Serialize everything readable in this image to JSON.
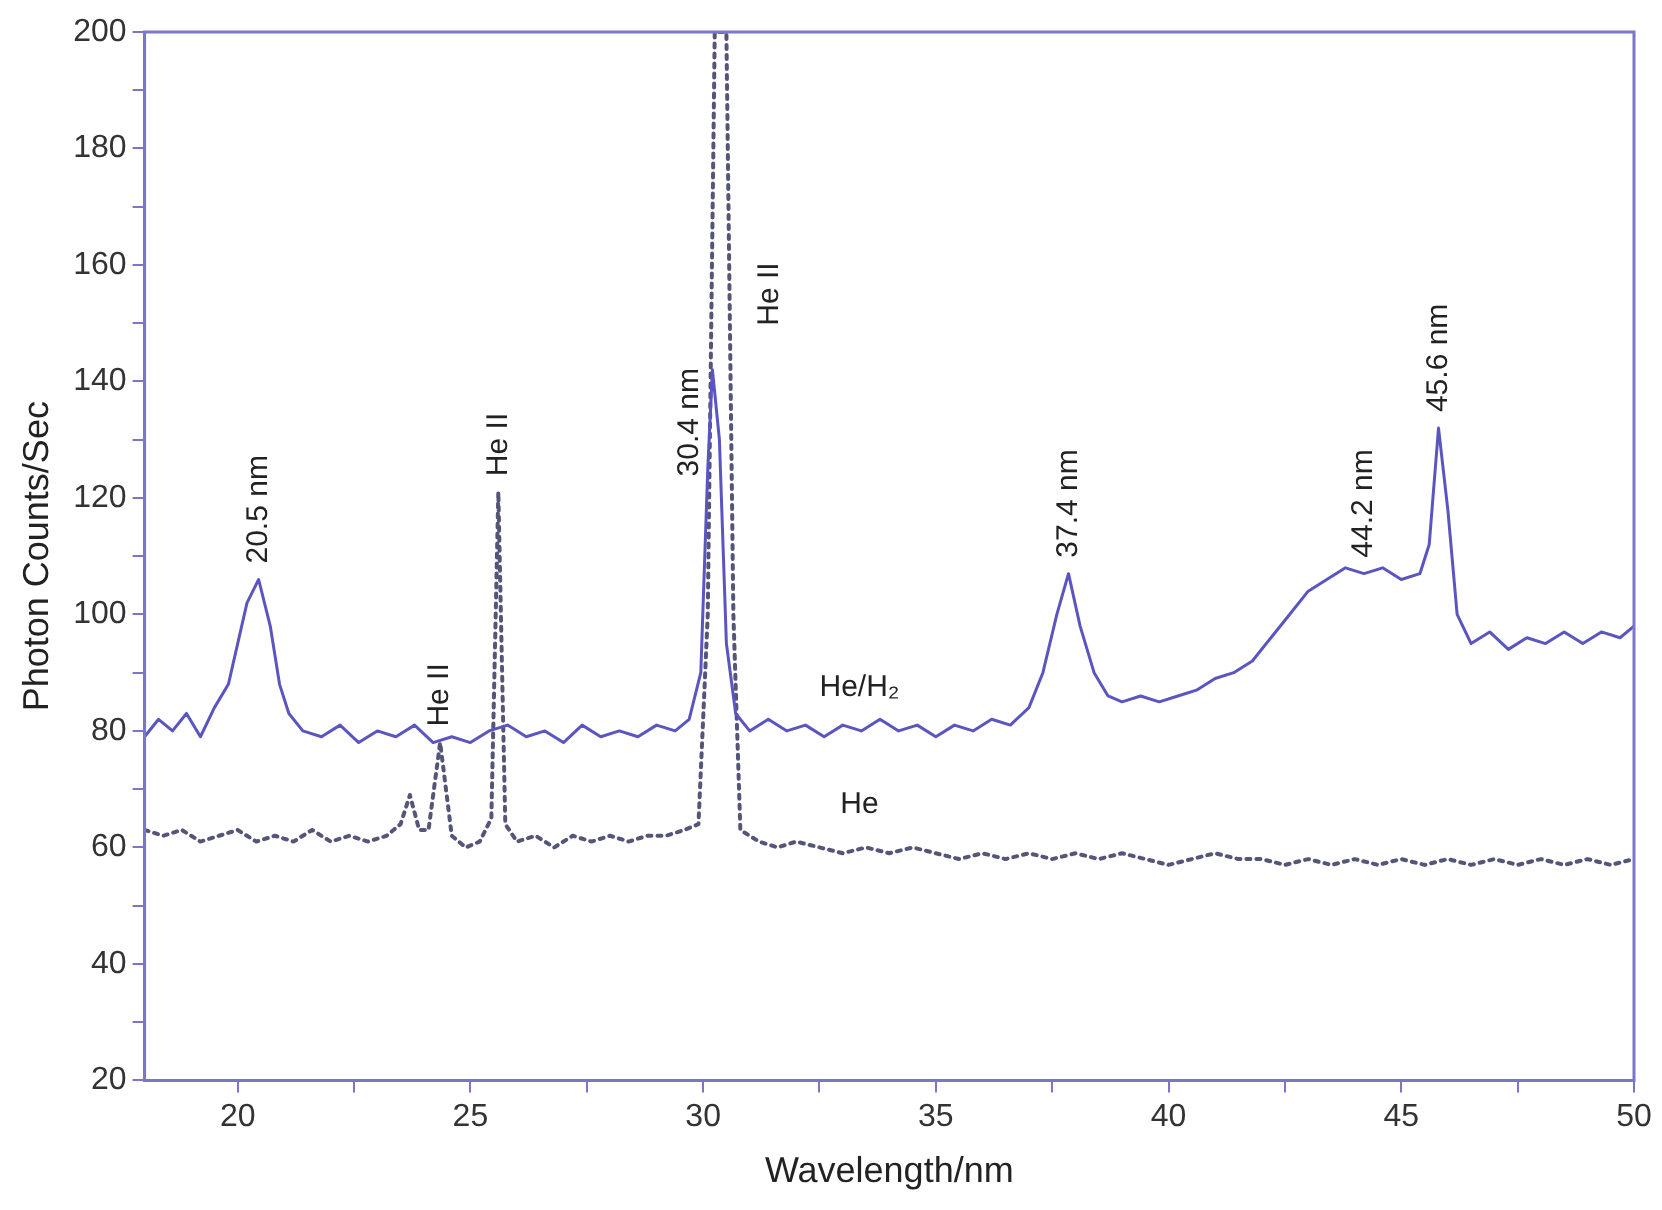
{
  "chart_data": {
    "type": "line",
    "xlabel": "Wavelength/nm",
    "ylabel": "Photon Counts/Sec",
    "xlim": [
      18,
      50
    ],
    "ylim": [
      20,
      200
    ],
    "xticks": [
      20,
      {
        "value": 22.5,
        "label": null
      },
      25,
      {
        "value": 27.5,
        "label": null
      },
      30,
      {
        "value": 32.5,
        "label": null
      },
      35,
      {
        "value": 37.5,
        "label": null
      },
      40,
      {
        "value": 42.5,
        "label": null
      },
      45,
      {
        "value": 47.5,
        "label": null
      },
      50
    ],
    "yticks": [
      20,
      {
        "value": 30,
        "label": null
      },
      40,
      {
        "value": 50,
        "label": null
      },
      60,
      {
        "value": 70,
        "label": null
      },
      80,
      {
        "value": 90,
        "label": null
      },
      100,
      {
        "value": 110,
        "label": null
      },
      120,
      {
        "value": 130,
        "label": null
      },
      140,
      {
        "value": 150,
        "label": null
      },
      160,
      {
        "value": 170,
        "label": null
      },
      180,
      {
        "value": 190,
        "label": null
      },
      200
    ],
    "grid": false,
    "legend": false,
    "marker": "none",
    "series": [
      {
        "name": "He/H₂",
        "color": "#5b55c0",
        "line_style": "solid",
        "x": [
          18.0,
          18.3,
          18.6,
          18.9,
          19.2,
          19.5,
          19.8,
          20.0,
          20.2,
          20.45,
          20.7,
          20.9,
          21.1,
          21.4,
          21.8,
          22.2,
          22.6,
          23.0,
          23.4,
          23.8,
          24.2,
          24.6,
          25.0,
          25.4,
          25.8,
          26.2,
          26.6,
          27.0,
          27.4,
          27.8,
          28.2,
          28.6,
          29.0,
          29.4,
          29.7,
          29.95,
          30.1,
          30.2,
          30.35,
          30.5,
          30.7,
          31.0,
          31.4,
          31.8,
          32.2,
          32.6,
          33.0,
          33.4,
          33.8,
          34.2,
          34.6,
          35.0,
          35.4,
          35.8,
          36.2,
          36.6,
          37.0,
          37.3,
          37.6,
          37.85,
          38.1,
          38.4,
          38.7,
          39.0,
          39.4,
          39.8,
          40.2,
          40.6,
          41.0,
          41.4,
          41.8,
          42.2,
          42.6,
          43.0,
          43.4,
          43.8,
          44.2,
          44.6,
          45.0,
          45.4,
          45.6,
          45.8,
          46.0,
          46.2,
          46.5,
          46.9,
          47.3,
          47.7,
          48.1,
          48.5,
          48.9,
          49.3,
          49.7,
          50.0
        ],
        "values": [
          79,
          82,
          80,
          83,
          79,
          84,
          88,
          95,
          102,
          106,
          98,
          88,
          83,
          80,
          79,
          81,
          78,
          80,
          79,
          81,
          78,
          79,
          78,
          80,
          81,
          79,
          80,
          78,
          81,
          79,
          80,
          79,
          81,
          80,
          82,
          90,
          125,
          142,
          130,
          95,
          83,
          80,
          82,
          80,
          81,
          79,
          81,
          80,
          82,
          80,
          81,
          79,
          81,
          80,
          82,
          81,
          84,
          90,
          100,
          107,
          98,
          90,
          86,
          85,
          86,
          85,
          86,
          87,
          89,
          90,
          92,
          96,
          100,
          104,
          106,
          108,
          107,
          108,
          106,
          107,
          112,
          132,
          118,
          100,
          95,
          97,
          94,
          96,
          95,
          97,
          95,
          97,
          96,
          98
        ]
      },
      {
        "name": "He",
        "color": "#55557a",
        "line_style": "dotted",
        "x": [
          18.0,
          18.4,
          18.8,
          19.2,
          19.6,
          20.0,
          20.4,
          20.8,
          21.2,
          21.6,
          22.0,
          22.4,
          22.8,
          23.2,
          23.5,
          23.7,
          23.9,
          24.1,
          24.35,
          24.6,
          24.9,
          25.2,
          25.45,
          25.6,
          25.75,
          26.0,
          26.4,
          26.8,
          27.2,
          27.6,
          28.0,
          28.4,
          28.8,
          29.2,
          29.6,
          29.9,
          30.1,
          30.25,
          30.5,
          30.65,
          30.8,
          31.2,
          31.6,
          32.0,
          32.5,
          33.0,
          33.5,
          34.0,
          34.5,
          35.0,
          35.5,
          36.0,
          36.5,
          37.0,
          37.5,
          38.0,
          38.5,
          39.0,
          39.5,
          40.0,
          40.5,
          41.0,
          41.5,
          42.0,
          42.5,
          43.0,
          43.5,
          44.0,
          44.5,
          45.0,
          45.5,
          46.0,
          46.5,
          47.0,
          47.5,
          48.0,
          48.5,
          49.0,
          49.5,
          50.0
        ],
        "values": [
          63,
          62,
          63,
          61,
          62,
          63,
          61,
          62,
          61,
          63,
          61,
          62,
          61,
          62,
          64,
          69,
          63,
          63,
          78,
          62,
          60,
          61,
          65,
          121,
          64,
          61,
          62,
          60,
          62,
          61,
          62,
          61,
          62,
          62,
          63,
          64,
          100,
          200,
          200,
          100,
          63,
          61,
          60,
          61,
          60,
          59,
          60,
          59,
          60,
          59,
          58,
          59,
          58,
          59,
          58,
          59,
          58,
          59,
          58,
          57,
          58,
          59,
          58,
          58,
          57,
          58,
          57,
          58,
          57,
          58,
          57,
          58,
          57,
          58,
          57,
          58,
          57,
          58,
          57,
          58
        ]
      }
    ],
    "annotations": [
      {
        "text": "20.5 nm",
        "x": 20.45,
        "y": 106
      },
      {
        "text": "He II",
        "x": 24.35,
        "y": 78
      },
      {
        "text": "He II",
        "x": 25.6,
        "y": 121
      },
      {
        "text": "30.4 nm",
        "x": 30.15,
        "y": 133
      },
      {
        "text": "He II",
        "x": 30.57,
        "y": 155
      },
      {
        "text": "37.4 nm",
        "x": 37.85,
        "y": 107
      },
      {
        "text": "44.2 nm",
        "x": 44.2,
        "y": 107
      },
      {
        "text": "45.6 nm",
        "x": 45.8,
        "y": 132
      }
    ]
  }
}
